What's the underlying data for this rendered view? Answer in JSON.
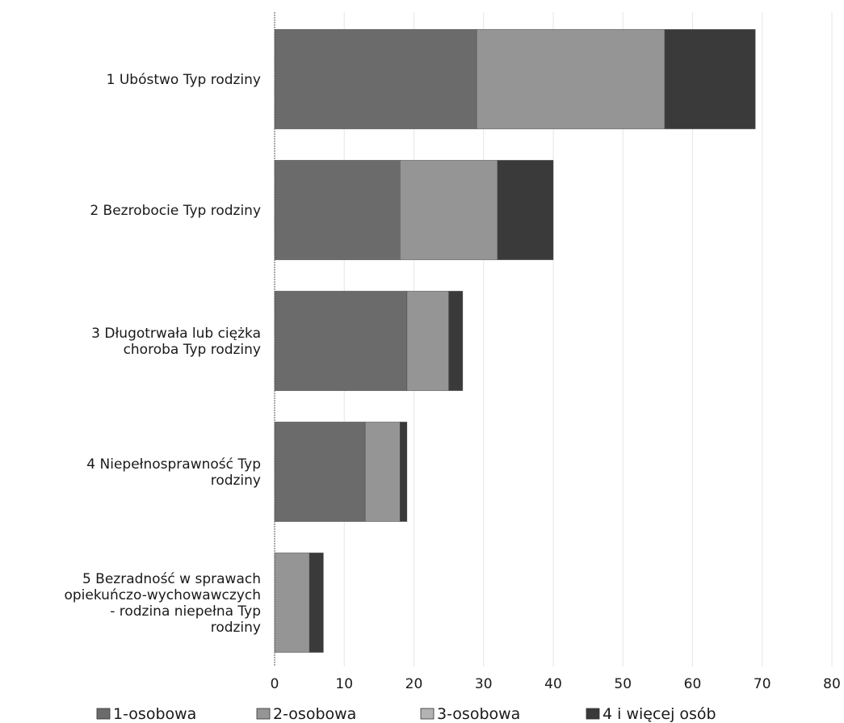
{
  "chart_data": {
    "type": "bar",
    "orientation": "horizontal",
    "stacked": true,
    "title": "",
    "xlabel": "",
    "ylabel": "",
    "xlim": [
      0,
      80
    ],
    "xticks": [
      0,
      10,
      20,
      30,
      40,
      50,
      60,
      70,
      80
    ],
    "grid": true,
    "legend_position": "bottom",
    "categories": [
      [
        "1 Ubóstwo Typ rodziny"
      ],
      [
        "2 Bezrobocie Typ rodziny"
      ],
      [
        "3 Długotrwała lub ciężka",
        "choroba Typ rodziny"
      ],
      [
        "4 Niepełnosprawność Typ",
        "rodziny"
      ],
      [
        "5 Bezradność w sprawach",
        "opiekuńczo-wychowawczych",
        "- rodzina niepełna Typ",
        "rodziny"
      ]
    ],
    "series": [
      {
        "name": "1-osobowa",
        "color": "#6b6b6b",
        "values": [
          29,
          18,
          19,
          13,
          0
        ]
      },
      {
        "name": "2-osobowa",
        "color": "#959595",
        "values": [
          27,
          14,
          6,
          5,
          5
        ]
      },
      {
        "name": "3-osobowa",
        "color": "#b3b3b3",
        "values": [
          0,
          0,
          0,
          0,
          0
        ]
      },
      {
        "name": "4  i więcej osób",
        "color": "#3a3a3a",
        "values": [
          13,
          8,
          2,
          1,
          2
        ]
      }
    ]
  }
}
